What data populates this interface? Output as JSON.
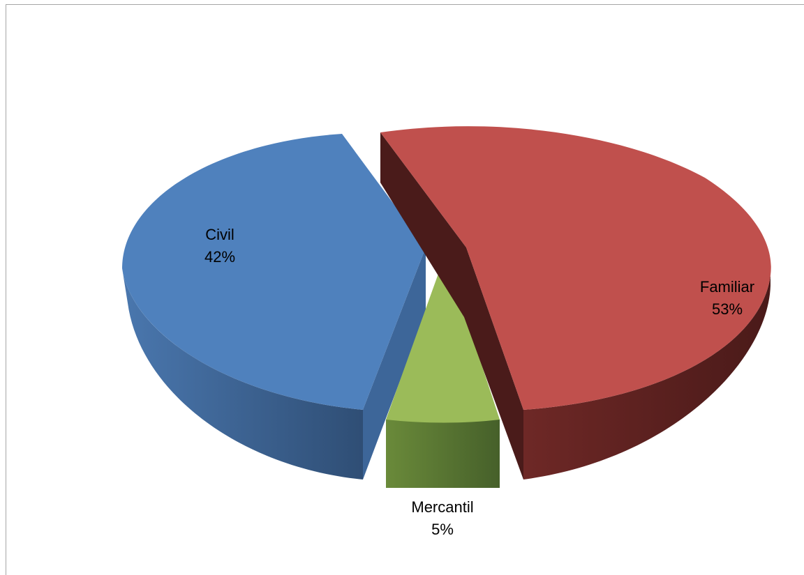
{
  "chart_data": {
    "type": "pie",
    "title": "",
    "slices": [
      {
        "name": "Civil",
        "value": 42,
        "label": "42%",
        "color": "#4F81BD",
        "side_color": "#3A5F8C"
      },
      {
        "name": "Mercantil",
        "value": 5,
        "label": "5%",
        "color": "#9BBB59",
        "side_color": "#5A7230"
      },
      {
        "name": "Familiar",
        "value": 53,
        "label": "53%",
        "color": "#C0504D",
        "side_color": "#5A1F1E"
      }
    ],
    "legend": "none",
    "style": "3d-exploded"
  },
  "colors": {
    "background": "#FFFFFF",
    "border": "#A6A6A6"
  }
}
